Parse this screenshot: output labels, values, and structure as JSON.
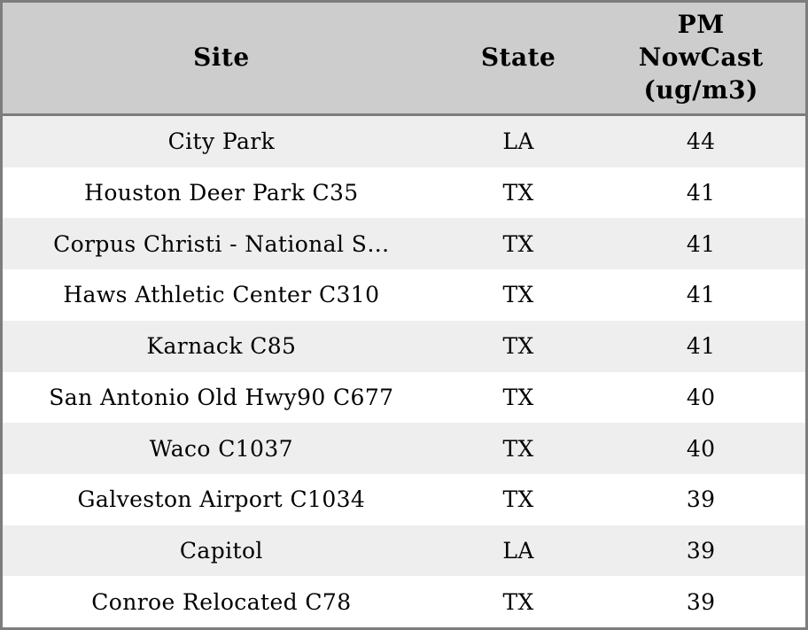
{
  "chart_data": {
    "type": "table",
    "columns": [
      "Site",
      "State",
      "PM NowCast (ug/m3)"
    ],
    "rows": [
      [
        "City Park",
        "LA",
        44
      ],
      [
        "Houston Deer Park C35",
        "TX",
        41
      ],
      [
        "Corpus Christi - National S…",
        "TX",
        41
      ],
      [
        "Haws Athletic Center C310",
        "TX",
        41
      ],
      [
        "Karnack C85",
        "TX",
        41
      ],
      [
        "San Antonio Old Hwy90 C677",
        "TX",
        40
      ],
      [
        "Waco C1037",
        "TX",
        40
      ],
      [
        "Galveston Airport C1034",
        "TX",
        39
      ],
      [
        "Capitol",
        "LA",
        39
      ],
      [
        "Conroe Relocated C78",
        "TX",
        39
      ]
    ],
    "layout_hints": {
      "striped_rows": true,
      "header_position": "top",
      "column_alignment": [
        "center",
        "center",
        "center"
      ]
    }
  },
  "colors": {
    "header_bg": "#cdcdcd",
    "stripe_bg": "#eeeeee",
    "row_bg": "#ffffff",
    "border": "#7d7d7d",
    "text": "#000000"
  }
}
